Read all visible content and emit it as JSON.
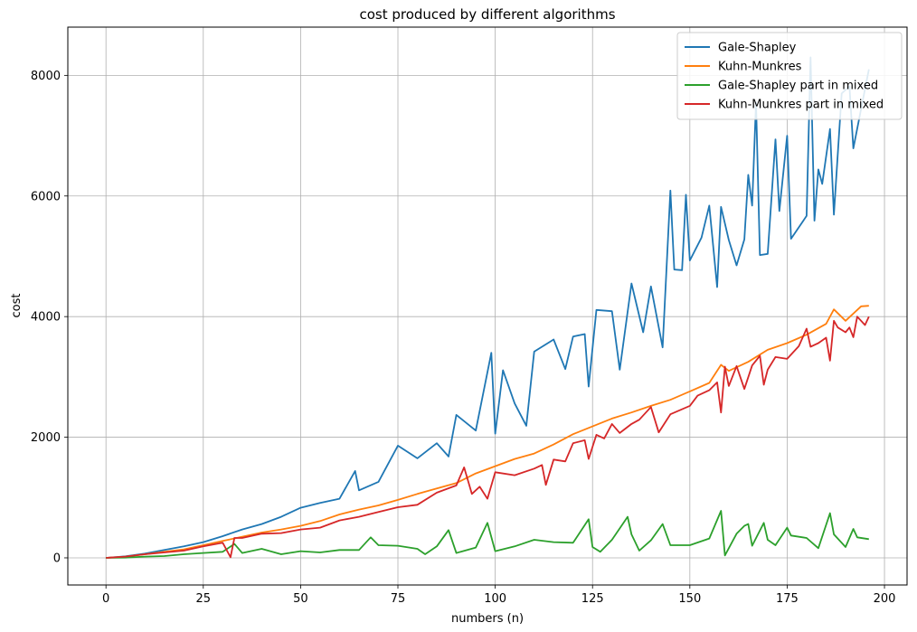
{
  "chart_data": {
    "type": "line",
    "title": "cost produced by different algorithms",
    "xlabel": "numbers (n)",
    "ylabel": "cost",
    "xlim": [
      -9.8,
      205.8
    ],
    "ylim": [
      -450,
      8800
    ],
    "xticks": [
      0,
      25,
      50,
      75,
      100,
      125,
      150,
      175,
      200
    ],
    "yticks": [
      0,
      2000,
      4000,
      6000,
      8000
    ],
    "grid": true,
    "legend_position": "top-right",
    "series": [
      {
        "name": "Gale-Shapley",
        "color": "#1f77b4",
        "points": [
          [
            0,
            0
          ],
          [
            5,
            25
          ],
          [
            10,
            70
          ],
          [
            15,
            130
          ],
          [
            20,
            190
          ],
          [
            25,
            260
          ],
          [
            30,
            360
          ],
          [
            35,
            470
          ],
          [
            40,
            560
          ],
          [
            45,
            680
          ],
          [
            50,
            830
          ],
          [
            55,
            910
          ],
          [
            60,
            980
          ],
          [
            64,
            1440
          ],
          [
            65,
            1120
          ],
          [
            70,
            1260
          ],
          [
            75,
            1860
          ],
          [
            80,
            1650
          ],
          [
            85,
            1900
          ],
          [
            88,
            1680
          ],
          [
            90,
            2370
          ],
          [
            95,
            2110
          ],
          [
            99,
            3400
          ],
          [
            100,
            2060
          ],
          [
            102,
            3110
          ],
          [
            105,
            2560
          ],
          [
            108,
            2190
          ],
          [
            110,
            3420
          ],
          [
            115,
            3620
          ],
          [
            118,
            3130
          ],
          [
            120,
            3670
          ],
          [
            123,
            3710
          ],
          [
            124,
            2840
          ],
          [
            126,
            4110
          ],
          [
            130,
            4090
          ],
          [
            132,
            3120
          ],
          [
            135,
            4550
          ],
          [
            138,
            3740
          ],
          [
            140,
            4500
          ],
          [
            143,
            3490
          ],
          [
            145,
            6090
          ],
          [
            146,
            4780
          ],
          [
            148,
            4770
          ],
          [
            149,
            6020
          ],
          [
            150,
            4930
          ],
          [
            153,
            5310
          ],
          [
            155,
            5840
          ],
          [
            157,
            4490
          ],
          [
            158,
            5820
          ],
          [
            160,
            5270
          ],
          [
            162,
            4850
          ],
          [
            164,
            5280
          ],
          [
            165,
            6350
          ],
          [
            166,
            5840
          ],
          [
            167,
            7550
          ],
          [
            168,
            5020
          ],
          [
            170,
            5040
          ],
          [
            172,
            6940
          ],
          [
            173,
            5750
          ],
          [
            175,
            7000
          ],
          [
            176,
            5290
          ],
          [
            180,
            5670
          ],
          [
            181,
            8300
          ],
          [
            182,
            5590
          ],
          [
            183,
            6440
          ],
          [
            184,
            6200
          ],
          [
            186,
            7110
          ],
          [
            187,
            5690
          ],
          [
            189,
            7700
          ],
          [
            191,
            7820
          ],
          [
            192,
            6790
          ],
          [
            196,
            8100
          ]
        ]
      },
      {
        "name": "Kuhn-Munkres",
        "color": "#ff7f0e",
        "points": [
          [
            0,
            0
          ],
          [
            5,
            20
          ],
          [
            10,
            60
          ],
          [
            15,
            100
          ],
          [
            20,
            140
          ],
          [
            25,
            210
          ],
          [
            30,
            280
          ],
          [
            35,
            350
          ],
          [
            40,
            420
          ],
          [
            45,
            470
          ],
          [
            50,
            530
          ],
          [
            55,
            610
          ],
          [
            60,
            720
          ],
          [
            65,
            800
          ],
          [
            70,
            870
          ],
          [
            75,
            960
          ],
          [
            80,
            1060
          ],
          [
            85,
            1150
          ],
          [
            90,
            1240
          ],
          [
            95,
            1400
          ],
          [
            100,
            1520
          ],
          [
            105,
            1640
          ],
          [
            110,
            1730
          ],
          [
            115,
            1880
          ],
          [
            120,
            2050
          ],
          [
            125,
            2180
          ],
          [
            130,
            2310
          ],
          [
            135,
            2410
          ],
          [
            140,
            2520
          ],
          [
            145,
            2620
          ],
          [
            150,
            2760
          ],
          [
            155,
            2900
          ],
          [
            158,
            3200
          ],
          [
            160,
            3100
          ],
          [
            165,
            3250
          ],
          [
            170,
            3450
          ],
          [
            175,
            3560
          ],
          [
            180,
            3700
          ],
          [
            185,
            3880
          ],
          [
            187,
            4120
          ],
          [
            190,
            3930
          ],
          [
            194,
            4170
          ],
          [
            196,
            4180
          ]
        ]
      },
      {
        "name": "Gale-Shapley part in mixed",
        "color": "#2ca02c",
        "points": [
          [
            0,
            0
          ],
          [
            5,
            5
          ],
          [
            10,
            20
          ],
          [
            15,
            30
          ],
          [
            20,
            60
          ],
          [
            25,
            80
          ],
          [
            30,
            100
          ],
          [
            33,
            230
          ],
          [
            35,
            80
          ],
          [
            40,
            150
          ],
          [
            45,
            60
          ],
          [
            50,
            110
          ],
          [
            55,
            90
          ],
          [
            60,
            130
          ],
          [
            65,
            130
          ],
          [
            68,
            340
          ],
          [
            70,
            210
          ],
          [
            75,
            200
          ],
          [
            80,
            150
          ],
          [
            82,
            60
          ],
          [
            85,
            190
          ],
          [
            88,
            460
          ],
          [
            90,
            80
          ],
          [
            95,
            170
          ],
          [
            98,
            580
          ],
          [
            100,
            110
          ],
          [
            105,
            190
          ],
          [
            110,
            300
          ],
          [
            115,
            260
          ],
          [
            120,
            250
          ],
          [
            124,
            640
          ],
          [
            125,
            180
          ],
          [
            127,
            100
          ],
          [
            130,
            300
          ],
          [
            134,
            680
          ],
          [
            135,
            390
          ],
          [
            137,
            120
          ],
          [
            140,
            290
          ],
          [
            143,
            560
          ],
          [
            145,
            210
          ],
          [
            150,
            210
          ],
          [
            155,
            320
          ],
          [
            158,
            780
          ],
          [
            159,
            40
          ],
          [
            162,
            400
          ],
          [
            164,
            530
          ],
          [
            165,
            560
          ],
          [
            166,
            200
          ],
          [
            169,
            580
          ],
          [
            170,
            300
          ],
          [
            172,
            210
          ],
          [
            175,
            500
          ],
          [
            176,
            370
          ],
          [
            180,
            330
          ],
          [
            183,
            160
          ],
          [
            186,
            740
          ],
          [
            187,
            390
          ],
          [
            190,
            180
          ],
          [
            192,
            480
          ],
          [
            193,
            340
          ],
          [
            196,
            310
          ]
        ]
      },
      {
        "name": "Kuhn-Munkres part in mixed",
        "color": "#d62728",
        "points": [
          [
            0,
            0
          ],
          [
            5,
            20
          ],
          [
            10,
            60
          ],
          [
            15,
            90
          ],
          [
            20,
            120
          ],
          [
            25,
            190
          ],
          [
            30,
            250
          ],
          [
            32,
            10
          ],
          [
            33,
            330
          ],
          [
            35,
            330
          ],
          [
            40,
            400
          ],
          [
            45,
            410
          ],
          [
            50,
            470
          ],
          [
            55,
            500
          ],
          [
            60,
            620
          ],
          [
            65,
            680
          ],
          [
            70,
            760
          ],
          [
            75,
            840
          ],
          [
            80,
            880
          ],
          [
            85,
            1080
          ],
          [
            90,
            1200
          ],
          [
            92,
            1500
          ],
          [
            94,
            1060
          ],
          [
            96,
            1180
          ],
          [
            98,
            980
          ],
          [
            100,
            1420
          ],
          [
            105,
            1370
          ],
          [
            110,
            1480
          ],
          [
            112,
            1540
          ],
          [
            113,
            1210
          ],
          [
            115,
            1630
          ],
          [
            118,
            1600
          ],
          [
            120,
            1900
          ],
          [
            123,
            1950
          ],
          [
            124,
            1640
          ],
          [
            126,
            2040
          ],
          [
            128,
            1980
          ],
          [
            130,
            2220
          ],
          [
            132,
            2070
          ],
          [
            135,
            2220
          ],
          [
            137,
            2290
          ],
          [
            140,
            2500
          ],
          [
            142,
            2080
          ],
          [
            145,
            2380
          ],
          [
            150,
            2520
          ],
          [
            152,
            2690
          ],
          [
            155,
            2780
          ],
          [
            157,
            2910
          ],
          [
            158,
            2410
          ],
          [
            159,
            3170
          ],
          [
            160,
            2850
          ],
          [
            162,
            3180
          ],
          [
            164,
            2800
          ],
          [
            166,
            3190
          ],
          [
            168,
            3350
          ],
          [
            169,
            2870
          ],
          [
            170,
            3120
          ],
          [
            172,
            3330
          ],
          [
            175,
            3300
          ],
          [
            178,
            3510
          ],
          [
            180,
            3800
          ],
          [
            181,
            3500
          ],
          [
            183,
            3560
          ],
          [
            185,
            3650
          ],
          [
            186,
            3270
          ],
          [
            187,
            3930
          ],
          [
            188,
            3820
          ],
          [
            190,
            3740
          ],
          [
            191,
            3820
          ],
          [
            192,
            3660
          ],
          [
            193,
            4000
          ],
          [
            195,
            3860
          ],
          [
            196,
            4000
          ]
        ]
      }
    ]
  }
}
